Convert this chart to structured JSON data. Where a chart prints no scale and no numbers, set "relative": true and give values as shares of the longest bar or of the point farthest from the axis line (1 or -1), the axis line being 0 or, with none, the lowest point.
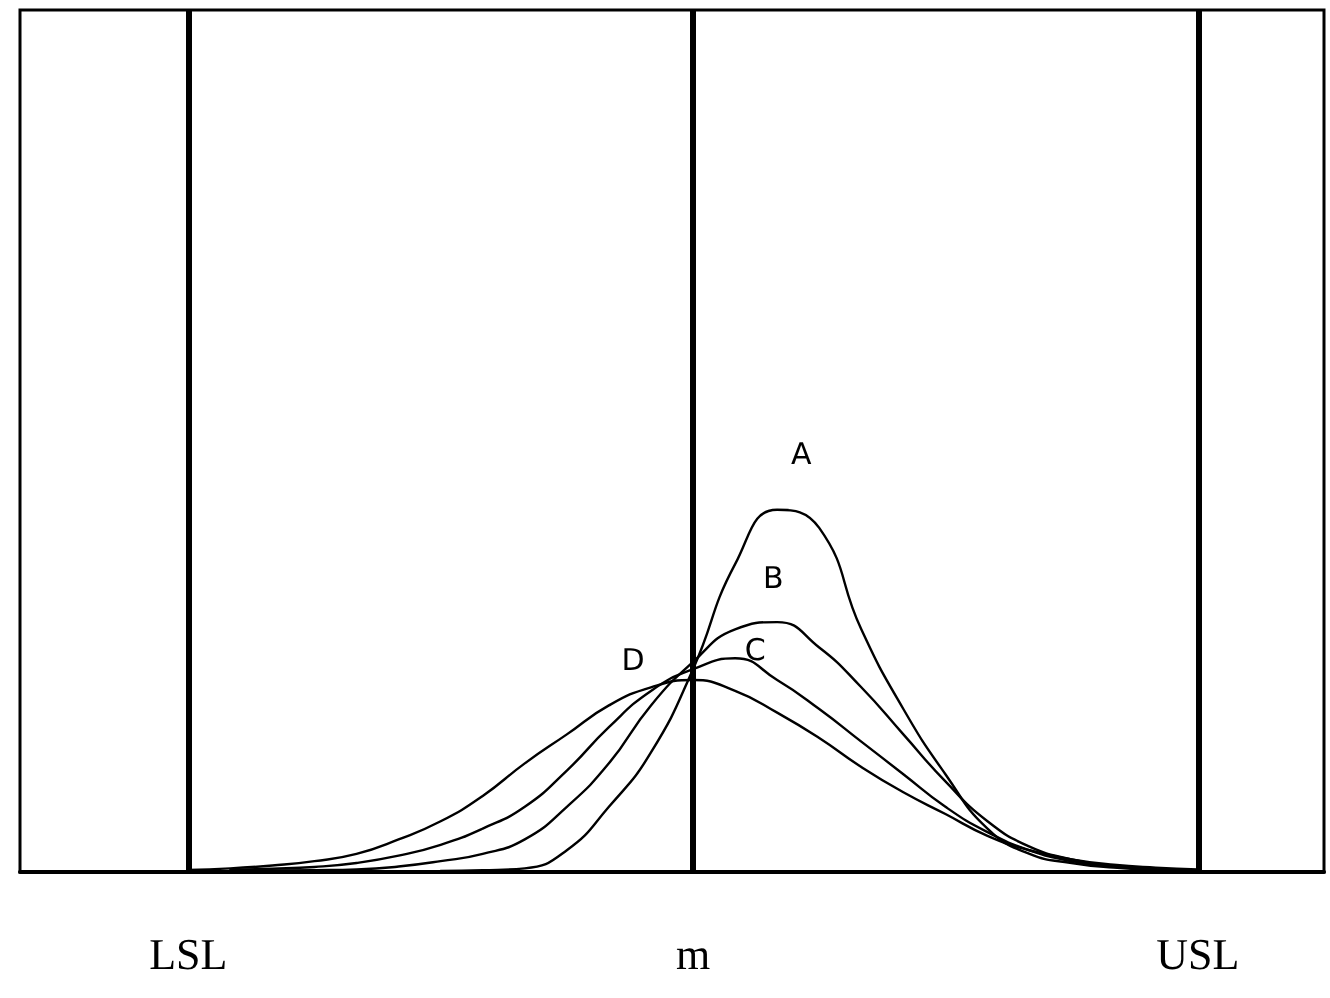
{
  "chart_data": {
    "type": "line",
    "relative": true,
    "marker": "none",
    "line_style": "solid",
    "categories": [
      null,
      null,
      null,
      null,
      "LSL",
      null,
      null,
      null,
      null,
      null,
      null,
      null,
      null,
      null,
      null,
      null,
      "m",
      null,
      null,
      null,
      null,
      null,
      null,
      null,
      null,
      null,
      null,
      null,
      "USL",
      null,
      null,
      null
    ],
    "series": [
      {
        "color": "#000000",
        "values": [
          null,
          null,
          null,
          null,
          null,
          null,
          null,
          null,
          null,
          null,
          0.003,
          0.005,
          0.01,
          0.06,
          0.18,
          0.33,
          0.56,
          0.85,
          1,
          0.95,
          0.67,
          0.45,
          0.27,
          0.12,
          0.05,
          0.025,
          0.012,
          0.006,
          null,
          null,
          null,
          null
        ]
      },
      {
        "color": "#000000",
        "values": [
          null,
          null,
          null,
          null,
          null,
          null,
          0.004,
          0.005,
          0.007,
          0.015,
          0.03,
          0.05,
          0.09,
          0.18,
          0.3,
          0.46,
          0.58,
          0.67,
          0.69,
          0.62,
          0.51,
          0.38,
          0.25,
          0.14,
          0.07,
          0.035,
          0.016,
          0.008,
          0.004,
          null,
          null,
          null
        ]
      },
      {
        "color": "#000000",
        "values": [
          null,
          null,
          null,
          null,
          null,
          0.006,
          0.009,
          0.014,
          0.025,
          0.045,
          0.075,
          0.12,
          0.18,
          0.28,
          0.4,
          0.5,
          0.56,
          0.59,
          0.53,
          0.45,
          0.36,
          0.27,
          0.18,
          0.11,
          0.06,
          0.03,
          0.015,
          0.008,
          null,
          null,
          null,
          null
        ]
      },
      {
        "color": "#000000",
        "values": [
          null,
          null,
          null,
          null,
          0.006,
          0.01,
          0.018,
          0.03,
          0.05,
          0.09,
          0.14,
          0.21,
          0.3,
          0.38,
          0.46,
          0.51,
          0.53,
          0.5,
          0.44,
          0.37,
          0.29,
          0.22,
          0.16,
          0.1,
          0.06,
          0.035,
          0.02,
          0.012,
          0.007,
          null,
          null,
          null
        ]
      }
    ],
    "ref_lines": [
      {
        "axis": "x",
        "value": "LSL",
        "color": "#000000"
      },
      {
        "axis": "x",
        "value": "m",
        "color": "#000000"
      },
      {
        "axis": "x",
        "value": "USL",
        "color": "#000000"
      }
    ],
    "annotations": [
      "A",
      "B",
      "C",
      "D"
    ]
  }
}
